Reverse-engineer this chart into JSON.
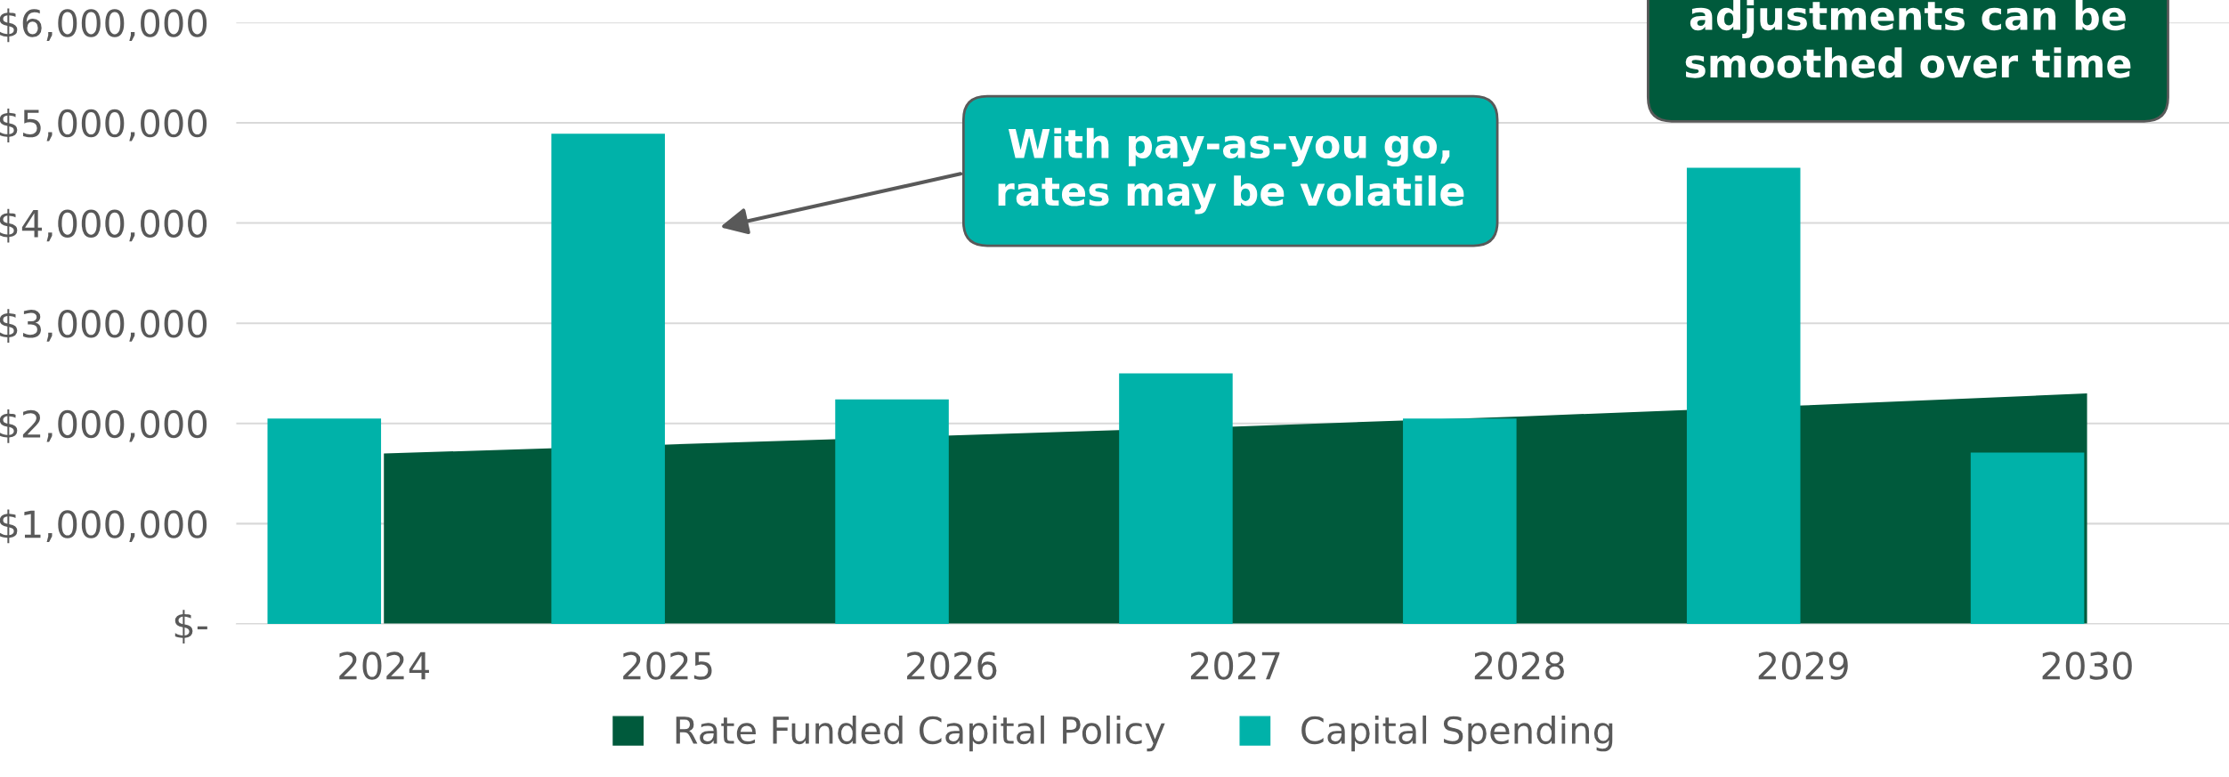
{
  "chart_data": {
    "type": "bar",
    "categories": [
      "2024",
      "2025",
      "2026",
      "2027",
      "2028",
      "2029",
      "2030"
    ],
    "series": [
      {
        "name": "Rate Funded Capital Policy",
        "type": "area",
        "color": "#005a3c",
        "values": [
          1700000,
          1790000,
          1880000,
          1970000,
          2070000,
          2180000,
          2300000
        ]
      },
      {
        "name": "Capital Spending",
        "color": "#00b2a9",
        "values": [
          2050000,
          4890000,
          2240000,
          2500000,
          2050000,
          4550000,
          1710000
        ]
      }
    ],
    "ylim": [
      0,
      6000000
    ],
    "yticks": [
      {
        "value": 0,
        "label": "$-"
      },
      {
        "value": 1000000,
        "label": "$1,000,000"
      },
      {
        "value": 2000000,
        "label": "$2,000,000"
      },
      {
        "value": 3000000,
        "label": "$3,000,000"
      },
      {
        "value": 4000000,
        "label": "$4,000,000"
      },
      {
        "value": 5000000,
        "label": "$5,000,000"
      },
      {
        "value": 6000000,
        "label": "$6,000,000"
      }
    ],
    "grid": "y",
    "legend": "bottom",
    "annotations": [
      "With pay-as-you go,\nrates may be volatile",
      "adjustments can be\nsmoothed over time"
    ]
  }
}
